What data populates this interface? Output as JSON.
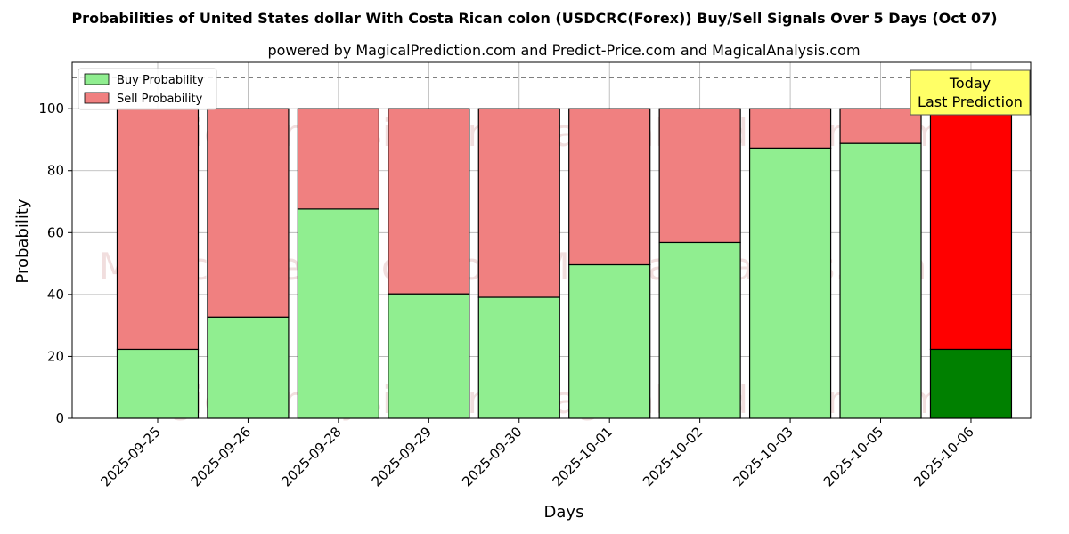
{
  "chart_data": {
    "type": "bar",
    "stacked": true,
    "title": "Probabilities of United States dollar With Costa Rican colon (USDCRC(Forex)) Buy/Sell Signals Over 5 Days (Oct 07)",
    "subtitle": "powered by MagicalPrediction.com and Predict-Price.com and MagicalAnalysis.com",
    "xlabel": "Days",
    "ylabel": "Probability",
    "ylim": [
      0,
      115
    ],
    "yticks": [
      0,
      20,
      40,
      60,
      80,
      100
    ],
    "grid": true,
    "legend_position": "top-left",
    "categories": [
      "2025-09-25",
      "2025-09-26",
      "2025-09-28",
      "2025-09-29",
      "2025-09-30",
      "2025-10-01",
      "2025-10-02",
      "2025-10-03",
      "2025-10-05",
      "2025-10-06"
    ],
    "series": [
      {
        "name": "Buy Probability",
        "color": "#90ee90",
        "highlight_color": "#008000",
        "values": [
          22.3,
          32.7,
          67.6,
          40.2,
          39.1,
          49.6,
          56.8,
          87.3,
          88.8,
          22.3
        ]
      },
      {
        "name": "Sell Probability",
        "color": "#f08080",
        "highlight_color": "#ff0000",
        "values": [
          77.7,
          67.3,
          32.4,
          59.8,
          60.9,
          50.4,
          43.2,
          12.7,
          11.2,
          77.7
        ]
      }
    ],
    "reference_line": {
      "y": 110,
      "style": "dashed"
    },
    "annotation": {
      "lines": [
        "Today",
        "Last Prediction"
      ],
      "background": "#ffff66"
    },
    "watermarks": [
      "MagicalAnalysis.com",
      "MagicalPrediction.com"
    ]
  }
}
